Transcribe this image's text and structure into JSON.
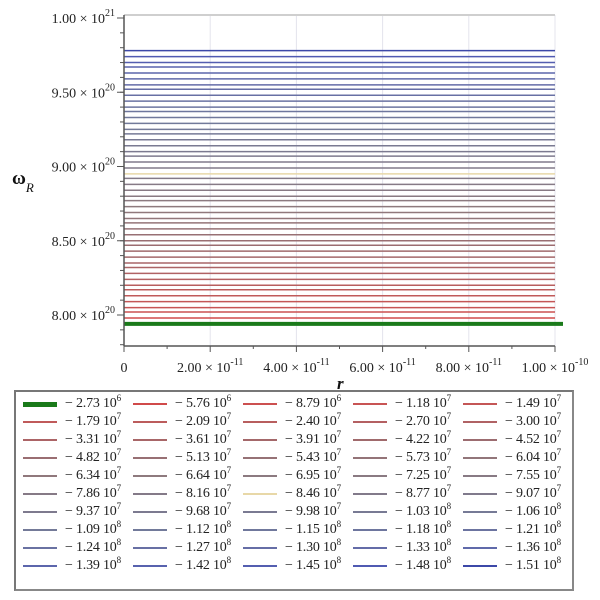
{
  "chart_data": {
    "type": "line",
    "title": "",
    "xlabel": "r",
    "ylabel": "ωR",
    "xlim": [
      0,
      1e-10
    ],
    "ylim": [
      7.82e+20,
      1.002e+21
    ],
    "grid": true,
    "legend_position": "bottom",
    "x_ticks": [
      {
        "value": 0,
        "label": "0"
      },
      {
        "value": 2e-11,
        "label": "2.00 × 10",
        "exp": "-11"
      },
      {
        "value": 4e-11,
        "label": "4.00 × 10",
        "exp": "-11"
      },
      {
        "value": 6e-11,
        "label": "6.00 × 10",
        "exp": "-11"
      },
      {
        "value": 8e-11,
        "label": "8.00 × 10",
        "exp": "-11"
      },
      {
        "value": 1e-10,
        "label": "1.00 × 10",
        "exp": "-10"
      }
    ],
    "y_ticks": [
      {
        "value": 1e+21,
        "label": "1.00 × 10",
        "exp": "21"
      },
      {
        "value": 9.5e+20,
        "label": "9.50 × 10",
        "exp": "20"
      },
      {
        "value": 9e+20,
        "label": "9.00 × 10",
        "exp": "20"
      },
      {
        "value": 8.5e+20,
        "label": "8.50 × 10",
        "exp": "20"
      },
      {
        "value": 8e+20,
        "label": "8.00 × 10",
        "exp": "20"
      }
    ],
    "x": [
      0,
      1e-10
    ],
    "series": [
      {
        "name": "−2.73 10^6",
        "mant": "−2.73",
        "exp": "6",
        "color": "#1a7a1a",
        "width": 4,
        "values": [
          7.94e+20,
          7.94e+20
        ]
      },
      {
        "name": "−5.76 10^6",
        "mant": "−5.76",
        "exp": "6",
        "color": "#d04a4a",
        "width": 1.5,
        "values": [
          7.98e+20,
          7.98e+20
        ]
      },
      {
        "name": "−8.79 10^6",
        "mant": "−8.79",
        "exp": "6",
        "color": "#cc5050",
        "width": 1.5,
        "values": [
          8.02e+20,
          8.02e+20
        ]
      },
      {
        "name": "−1.18 10^7",
        "mant": "−1.18",
        "exp": "7",
        "color": "#c85454",
        "width": 1.5,
        "values": [
          8.05e+20,
          8.05e+20
        ]
      },
      {
        "name": "−1.49 10^7",
        "mant": "−1.49",
        "exp": "7",
        "color": "#c45656",
        "width": 1.5,
        "values": [
          8.09e+20,
          8.09e+20
        ]
      },
      {
        "name": "−1.79 10^7",
        "mant": "−1.79",
        "exp": "7",
        "color": "#c05a5a",
        "width": 1.5,
        "values": [
          8.13e+20,
          8.13e+20
        ]
      },
      {
        "name": "−2.09 10^7",
        "mant": "−2.09",
        "exp": "7",
        "color": "#bc5c5c",
        "width": 1.5,
        "values": [
          8.17e+20,
          8.17e+20
        ]
      },
      {
        "name": "−2.40 10^7",
        "mant": "−2.40",
        "exp": "7",
        "color": "#b85e5e",
        "width": 1.5,
        "values": [
          8.2e+20,
          8.2e+20
        ]
      },
      {
        "name": "−2.70 10^7",
        "mant": "−2.70",
        "exp": "7",
        "color": "#b46062",
        "width": 1.5,
        "values": [
          8.24e+20,
          8.24e+20
        ]
      },
      {
        "name": "−3.00 10^7",
        "mant": "−3.00",
        "exp": "7",
        "color": "#b06264",
        "width": 1.5,
        "values": [
          8.28e+20,
          8.28e+20
        ]
      },
      {
        "name": "−3.31 10^7",
        "mant": "−3.31",
        "exp": "7",
        "color": "#ac6466",
        "width": 1.5,
        "values": [
          8.32e+20,
          8.32e+20
        ]
      },
      {
        "name": "−3.61 10^7",
        "mant": "−3.61",
        "exp": "7",
        "color": "#a86668",
        "width": 1.5,
        "values": [
          8.35e+20,
          8.35e+20
        ]
      },
      {
        "name": "−3.91 10^7",
        "mant": "−3.91",
        "exp": "7",
        "color": "#a4686a",
        "width": 1.5,
        "values": [
          8.39e+20,
          8.39e+20
        ]
      },
      {
        "name": "−4.22 10^7",
        "mant": "−4.22",
        "exp": "7",
        "color": "#a06a6c",
        "width": 1.5,
        "values": [
          8.43e+20,
          8.43e+20
        ]
      },
      {
        "name": "−4.52 10^7",
        "mant": "−4.52",
        "exp": "7",
        "color": "#9c6c70",
        "width": 1.5,
        "values": [
          8.47e+20,
          8.47e+20
        ]
      },
      {
        "name": "−4.82 10^7",
        "mant": "−4.82",
        "exp": "7",
        "color": "#9a6e72",
        "width": 1.5,
        "values": [
          8.5e+20,
          8.5e+20
        ]
      },
      {
        "name": "−5.13 10^7",
        "mant": "−5.13",
        "exp": "7",
        "color": "#987074",
        "width": 1.5,
        "values": [
          8.54e+20,
          8.54e+20
        ]
      },
      {
        "name": "−5.43 10^7",
        "mant": "−5.43",
        "exp": "7",
        "color": "#967276",
        "width": 1.5,
        "values": [
          8.58e+20,
          8.58e+20
        ]
      },
      {
        "name": "−5.73 10^7",
        "mant": "−5.73",
        "exp": "7",
        "color": "#947478",
        "width": 1.5,
        "values": [
          8.62e+20,
          8.62e+20
        ]
      },
      {
        "name": "−6.04 10^7",
        "mant": "−6.04",
        "exp": "7",
        "color": "#92767a",
        "width": 1.5,
        "values": [
          8.65e+20,
          8.65e+20
        ]
      },
      {
        "name": "−6.34 10^7",
        "mant": "−6.34",
        "exp": "7",
        "color": "#90787c",
        "width": 1.5,
        "values": [
          8.69e+20,
          8.69e+20
        ]
      },
      {
        "name": "−6.64 10^7",
        "mant": "−6.64",
        "exp": "7",
        "color": "#8e7a7e",
        "width": 1.5,
        "values": [
          8.73e+20,
          8.73e+20
        ]
      },
      {
        "name": "−6.95 10^7",
        "mant": "−6.95",
        "exp": "7",
        "color": "#8c7a80",
        "width": 1.5,
        "values": [
          8.77e+20,
          8.77e+20
        ]
      },
      {
        "name": "−7.25 10^7",
        "mant": "−7.25",
        "exp": "7",
        "color": "#8a7a82",
        "width": 1.5,
        "values": [
          8.8e+20,
          8.8e+20
        ]
      },
      {
        "name": "−7.55 10^7",
        "mant": "−7.55",
        "exp": "7",
        "color": "#887a84",
        "width": 1.5,
        "values": [
          8.84e+20,
          8.84e+20
        ]
      },
      {
        "name": "−7.86 10^7",
        "mant": "−7.86",
        "exp": "7",
        "color": "#867a86",
        "width": 1.5,
        "values": [
          8.88e+20,
          8.88e+20
        ]
      },
      {
        "name": "−8.16 10^7",
        "mant": "−8.16",
        "exp": "7",
        "color": "#847a88",
        "width": 1.5,
        "values": [
          8.92e+20,
          8.92e+20
        ]
      },
      {
        "name": "−8.46 10^7",
        "mant": "−8.46",
        "exp": "7",
        "color": "#e8d8a8",
        "width": 1.5,
        "values": [
          8.95e+20,
          8.95e+20
        ]
      },
      {
        "name": "−8.77 10^7",
        "mant": "−8.77",
        "exp": "7",
        "color": "#827a8a",
        "width": 1.5,
        "values": [
          8.99e+20,
          8.99e+20
        ]
      },
      {
        "name": "−9.07 10^7",
        "mant": "−9.07",
        "exp": "7",
        "color": "#807a8c",
        "width": 1.5,
        "values": [
          9.03e+20,
          9.03e+20
        ]
      },
      {
        "name": "−9.37 10^7",
        "mant": "−9.37",
        "exp": "7",
        "color": "#7e7a8e",
        "width": 1.5,
        "values": [
          9.07e+20,
          9.07e+20
        ]
      },
      {
        "name": "−9.68 10^7",
        "mant": "−9.68",
        "exp": "7",
        "color": "#7c7a90",
        "width": 1.5,
        "values": [
          9.1e+20,
          9.1e+20
        ]
      },
      {
        "name": "−9.98 10^7",
        "mant": "−9.98",
        "exp": "7",
        "color": "#7a7a92",
        "width": 1.5,
        "values": [
          9.14e+20,
          9.14e+20
        ]
      },
      {
        "name": "−1.03 10^8",
        "mant": "−1.03",
        "exp": "8",
        "color": "#787a94",
        "width": 1.5,
        "values": [
          9.18e+20,
          9.18e+20
        ]
      },
      {
        "name": "−1.06 10^8",
        "mant": "−1.06",
        "exp": "8",
        "color": "#767a96",
        "width": 1.5,
        "values": [
          9.22e+20,
          9.22e+20
        ]
      },
      {
        "name": "−1.09 10^8",
        "mant": "−1.09",
        "exp": "8",
        "color": "#747a98",
        "width": 1.5,
        "values": [
          9.25e+20,
          9.25e+20
        ]
      },
      {
        "name": "−1.12 10^8",
        "mant": "−1.12",
        "exp": "8",
        "color": "#727a9a",
        "width": 1.5,
        "values": [
          9.29e+20,
          9.29e+20
        ]
      },
      {
        "name": "−1.15 10^8",
        "mant": "−1.15",
        "exp": "8",
        "color": "#70789c",
        "width": 1.5,
        "values": [
          9.33e+20,
          9.33e+20
        ]
      },
      {
        "name": "−1.18 10^8",
        "mant": "−1.18",
        "exp": "8",
        "color": "#6e769e",
        "width": 1.5,
        "values": [
          9.37e+20,
          9.37e+20
        ]
      },
      {
        "name": "−1.21 10^8",
        "mant": "−1.21",
        "exp": "8",
        "color": "#6c74a0",
        "width": 1.5,
        "values": [
          9.4e+20,
          9.4e+20
        ]
      },
      {
        "name": "−1.24 10^8",
        "mant": "−1.24",
        "exp": "8",
        "color": "#6a72a2",
        "width": 1.5,
        "values": [
          9.44e+20,
          9.44e+20
        ]
      },
      {
        "name": "−1.27 10^8",
        "mant": "−1.27",
        "exp": "8",
        "color": "#6870a4",
        "width": 1.5,
        "values": [
          9.48e+20,
          9.48e+20
        ]
      },
      {
        "name": "−1.30 10^8",
        "mant": "−1.30",
        "exp": "8",
        "color": "#666ea6",
        "width": 1.5,
        "values": [
          9.52e+20,
          9.52e+20
        ]
      },
      {
        "name": "−1.33 10^8",
        "mant": "−1.33",
        "exp": "8",
        "color": "#646ca8",
        "width": 1.5,
        "values": [
          9.55e+20,
          9.55e+20
        ]
      },
      {
        "name": "−1.36 10^8",
        "mant": "−1.36",
        "exp": "8",
        "color": "#606aaa",
        "width": 1.5,
        "values": [
          9.59e+20,
          9.59e+20
        ]
      },
      {
        "name": "−1.39 10^8",
        "mant": "−1.39",
        "exp": "8",
        "color": "#5c66ac",
        "width": 1.5,
        "values": [
          9.63e+20,
          9.63e+20
        ]
      },
      {
        "name": "−1.42 10^8",
        "mant": "−1.42",
        "exp": "8",
        "color": "#5862ae",
        "width": 1.5,
        "values": [
          9.67e+20,
          9.67e+20
        ]
      },
      {
        "name": "−1.45 10^8",
        "mant": "−1.45",
        "exp": "8",
        "color": "#545eb0",
        "width": 1.5,
        "values": [
          9.7e+20,
          9.7e+20
        ]
      },
      {
        "name": "−1.48 10^8",
        "mant": "−1.48",
        "exp": "8",
        "color": "#505ab2",
        "width": 1.5,
        "values": [
          9.74e+20,
          9.74e+20
        ]
      },
      {
        "name": "−1.51 10^8",
        "mant": "−1.51",
        "exp": "8",
        "color": "#3c48a8",
        "width": 1.5,
        "values": [
          9.78e+20,
          9.78e+20
        ]
      }
    ]
  },
  "axis": {
    "x_label": "r",
    "y_label_main": "ω",
    "y_label_sub": "R"
  }
}
